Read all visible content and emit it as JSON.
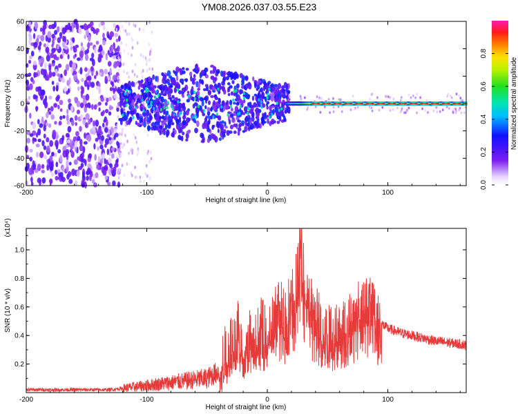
{
  "title": "YM08.2026.037.03.55.E23",
  "colors": {
    "series": "#e53b3b",
    "frame": "#000000"
  },
  "chart_data": [
    {
      "type": "heatmap",
      "xlabel": "Height of straight line (km)",
      "ylabel": "Frequency (Hz)",
      "xlim": [
        -200,
        165
      ],
      "ylim": [
        -60,
        60
      ],
      "x_ticks": [
        -200,
        -100,
        0,
        100
      ],
      "y_ticks": [
        -60,
        -40,
        -20,
        0,
        20,
        40,
        60
      ],
      "colorbar": {
        "label": "Normalized spectral amplitude",
        "range": [
          0.0,
          1.0
        ],
        "ticks": [
          "0.0",
          "0.2",
          "0.4",
          "0.6",
          "0.8"
        ],
        "colormap": "rainbow (white/violet low → blue → cyan → green → yellow → red → magenta high)"
      },
      "description_regions": [
        {
          "x": [
            -200,
            -120
          ],
          "y": [
            -60,
            60
          ],
          "amplitude": 0.1
        },
        {
          "x": [
            -120,
            15
          ],
          "y": [
            -30,
            30
          ],
          "amplitude": 0.25
        },
        {
          "x": [
            15,
            35
          ],
          "y": [
            -3,
            3
          ],
          "amplitude": 0.5
        },
        {
          "x": [
            35,
            165
          ],
          "y": [
            -1,
            1
          ],
          "amplitude": 0.9
        }
      ]
    },
    {
      "type": "line",
      "xlabel": "Height of straight line (km)",
      "ylabel": "SNR (10 * v/v)",
      "y_multiplier": "(x10⁴)",
      "xlim": [
        -200,
        165
      ],
      "ylim": [
        0,
        1.15
      ],
      "x_ticks": [
        -200,
        -100,
        0,
        100
      ],
      "y_ticks": [
        "0.2",
        "0.4",
        "0.6",
        "0.8",
        "1.0"
      ],
      "series": [
        {
          "color": "#e53b3b",
          "x": [
            -200,
            -180,
            -160,
            -140,
            -130,
            -120,
            -110,
            -100,
            -90,
            -80,
            -70,
            -60,
            -50,
            -40,
            -35,
            -30,
            -25,
            -20,
            -15,
            -10,
            -5,
            0,
            5,
            10,
            15,
            20,
            25,
            28,
            30,
            35,
            40,
            45,
            50,
            55,
            60,
            65,
            70,
            75,
            80,
            85,
            88,
            90,
            95,
            100,
            110,
            120,
            130,
            140,
            150,
            160,
            165
          ],
          "y": [
            0.02,
            0.02,
            0.02,
            0.02,
            0.02,
            0.03,
            0.04,
            0.05,
            0.06,
            0.07,
            0.08,
            0.09,
            0.1,
            0.15,
            0.25,
            0.35,
            0.45,
            0.3,
            0.4,
            0.35,
            0.45,
            0.4,
            0.5,
            0.6,
            0.55,
            0.65,
            0.8,
            1.15,
            0.85,
            0.7,
            0.55,
            0.45,
            0.42,
            0.4,
            0.45,
            0.5,
            0.55,
            0.6,
            0.65,
            0.62,
            0.7,
            0.55,
            0.48,
            0.45,
            0.42,
            0.4,
            0.38,
            0.36,
            0.35,
            0.34,
            0.33
          ]
        }
      ]
    }
  ]
}
